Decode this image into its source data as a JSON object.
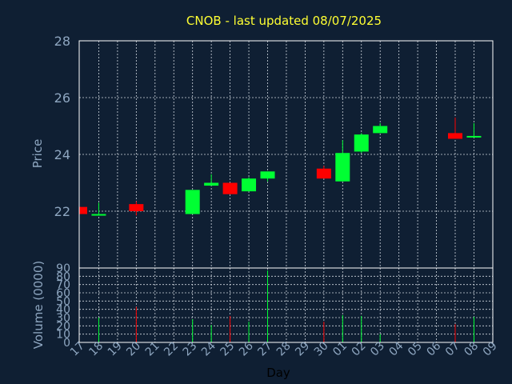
{
  "title": "CNOB - last updated 08/07/2025",
  "chart_data": [
    {
      "type": "candlestick",
      "ylabel": "Price",
      "ylim": [
        20.0,
        28.0
      ],
      "yticks": [
        22,
        24,
        26,
        28
      ],
      "up_color": "#00ff33",
      "down_color": "#ff0000",
      "candles": [
        {
          "day": "17",
          "open": 22.15,
          "close": 21.9,
          "high": 22.15,
          "low": 21.9
        },
        {
          "day": "18",
          "open": 21.85,
          "close": 21.9,
          "high": 22.3,
          "low": 21.85
        },
        {
          "day": "20",
          "open": 22.25,
          "close": 22.0,
          "high": 22.35,
          "low": 21.85
        },
        {
          "day": "23",
          "open": 21.9,
          "close": 22.75,
          "high": 22.75,
          "low": 21.9
        },
        {
          "day": "24",
          "open": 22.9,
          "close": 23.0,
          "high": 23.3,
          "low": 22.9
        },
        {
          "day": "25",
          "open": 23.0,
          "close": 22.6,
          "high": 23.0,
          "low": 22.6
        },
        {
          "day": "26",
          "open": 22.7,
          "close": 23.15,
          "high": 23.2,
          "low": 22.7
        },
        {
          "day": "27",
          "open": 23.15,
          "close": 23.4,
          "high": 23.4,
          "low": 23.05
        },
        {
          "day": "30",
          "open": 23.5,
          "close": 23.15,
          "high": 23.6,
          "low": 23.15
        },
        {
          "day": "01",
          "open": 23.05,
          "close": 24.05,
          "high": 24.5,
          "low": 23.05
        },
        {
          "day": "02",
          "open": 24.1,
          "close": 24.7,
          "high": 24.75,
          "low": 24.05
        },
        {
          "day": "03",
          "open": 24.75,
          "close": 25.0,
          "high": 25.1,
          "low": 24.75
        },
        {
          "day": "07",
          "open": 24.75,
          "close": 24.55,
          "high": 25.3,
          "low": 24.55
        },
        {
          "day": "08",
          "open": 24.6,
          "close": 24.65,
          "high": 25.1,
          "low": 24.6
        }
      ]
    },
    {
      "type": "bar",
      "ylabel": "Volume (0000)",
      "xlabel": "Day",
      "ylim": [
        0,
        90
      ],
      "yticks": [
        0,
        10,
        20,
        30,
        40,
        50,
        60,
        70,
        80,
        90
      ],
      "categories": [
        "17",
        "18",
        "19",
        "20",
        "21",
        "22",
        "23",
        "24",
        "25",
        "26",
        "27",
        "28",
        "29",
        "30",
        "01",
        "02",
        "03",
        "04",
        "05",
        "06",
        "07",
        "08",
        "09"
      ],
      "bars": [
        {
          "day": "18",
          "value": 30,
          "color": "#00ff33"
        },
        {
          "day": "20",
          "value": 43,
          "color": "#ff0000"
        },
        {
          "day": "23",
          "value": 28,
          "color": "#00ff33"
        },
        {
          "day": "24",
          "value": 21,
          "color": "#00ff33"
        },
        {
          "day": "25",
          "value": 32,
          "color": "#ff0000"
        },
        {
          "day": "26",
          "value": 25,
          "color": "#00ff33"
        },
        {
          "day": "27",
          "value": 87,
          "color": "#00ff33"
        },
        {
          "day": "30",
          "value": 25,
          "color": "#ff0000"
        },
        {
          "day": "01",
          "value": 33,
          "color": "#00ff33"
        },
        {
          "day": "02",
          "value": 32,
          "color": "#00ff33"
        },
        {
          "day": "03",
          "value": 10,
          "color": "#00ff33"
        },
        {
          "day": "07",
          "value": 22,
          "color": "#ff0000"
        },
        {
          "day": "08",
          "value": 31,
          "color": "#00ff33"
        }
      ]
    }
  ]
}
